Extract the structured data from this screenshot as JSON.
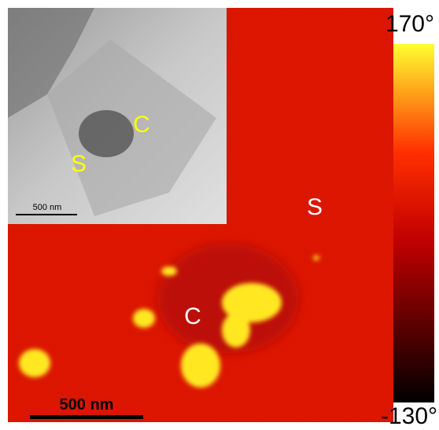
{
  "main_image": {
    "region_labels": [
      "S",
      "C"
    ],
    "scale_bar": "500 nm"
  },
  "inset_image": {
    "region_labels": [
      "C",
      "S"
    ],
    "scale_bar": "500 nm"
  },
  "colorbar": {
    "top_label": "170°",
    "bottom_label": "-130°"
  }
}
